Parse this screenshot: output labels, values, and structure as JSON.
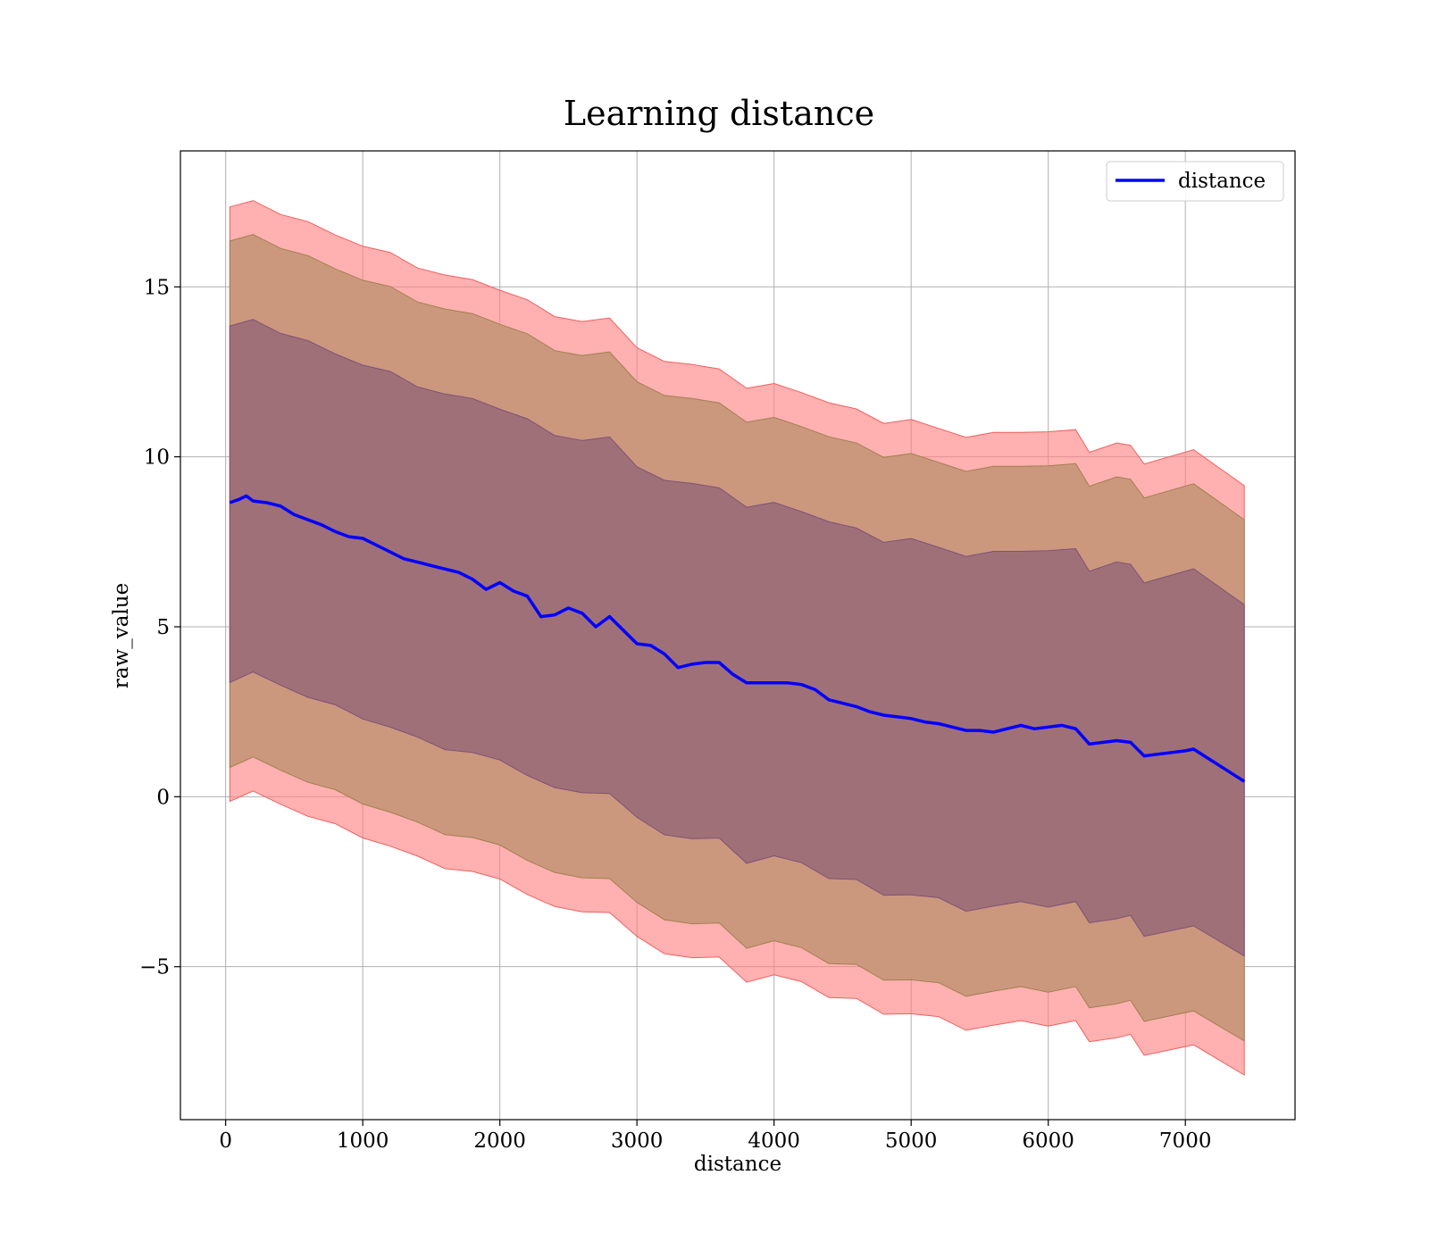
{
  "chart_data": {
    "type": "line",
    "title": "Learning distance",
    "xlabel": "distance",
    "ylabel": "raw_value",
    "xlim": [
      -330,
      7800
    ],
    "ylim": [
      -9.5,
      19.0
    ],
    "xticks": [
      0,
      1000,
      2000,
      3000,
      4000,
      5000,
      6000,
      7000
    ],
    "xtick_labels": [
      "0",
      "1000",
      "2000",
      "3000",
      "4000",
      "5000",
      "6000",
      "7000"
    ],
    "yticks": [
      -5,
      0,
      5,
      10,
      15
    ],
    "ytick_labels": [
      "−5",
      "0",
      "5",
      "10",
      "15"
    ],
    "grid": true,
    "legend": {
      "position": "top-right",
      "entries": [
        {
          "label": "distance",
          "color": "#0000ff"
        }
      ]
    },
    "colors": {
      "line": "#0000ff",
      "band_outer": "#ff8080",
      "band_middle": "#c8977b",
      "band_inner": "#a07078"
    },
    "series": [
      {
        "name": "distance",
        "x": [
          30,
          100,
          150,
          200,
          300,
          400,
          500,
          600,
          700,
          800,
          900,
          1000,
          1100,
          1200,
          1300,
          1400,
          1500,
          1600,
          1700,
          1800,
          1900,
          2000,
          2100,
          2200,
          2300,
          2400,
          2500,
          2600,
          2700,
          2800,
          2900,
          3000,
          3100,
          3200,
          3300,
          3400,
          3500,
          3600,
          3700,
          3800,
          3900,
          4000,
          4100,
          4200,
          4300,
          4400,
          4500,
          4600,
          4700,
          4800,
          4900,
          5000,
          5100,
          5200,
          5300,
          5400,
          5500,
          5600,
          5700,
          5800,
          5900,
          6000,
          6100,
          6200,
          6300,
          6400,
          6500,
          6600,
          6700,
          6800,
          6900,
          7000,
          7060,
          7430
        ],
        "y": [
          8.65,
          8.75,
          8.85,
          8.7,
          8.65,
          8.55,
          8.3,
          8.15,
          8.0,
          7.8,
          7.65,
          7.6,
          7.4,
          7.2,
          7.0,
          6.9,
          6.8,
          6.7,
          6.6,
          6.4,
          6.1,
          6.3,
          6.05,
          5.9,
          5.3,
          5.35,
          5.55,
          5.4,
          5.0,
          5.3,
          4.9,
          4.5,
          4.45,
          4.2,
          3.8,
          3.9,
          3.95,
          3.95,
          3.6,
          3.35,
          3.35,
          3.35,
          3.35,
          3.3,
          3.15,
          2.85,
          2.75,
          2.65,
          2.5,
          2.4,
          2.35,
          2.3,
          2.2,
          2.15,
          2.05,
          1.95,
          1.95,
          1.9,
          2.0,
          2.1,
          2.0,
          2.05,
          2.1,
          2.0,
          1.55,
          1.6,
          1.65,
          1.6,
          1.2,
          1.25,
          1.3,
          1.35,
          1.4,
          0.45
        ]
      }
    ],
    "bands": {
      "x": [
        30,
        200,
        400,
        600,
        800,
        1000,
        1200,
        1400,
        1600,
        1800,
        2000,
        2200,
        2400,
        2600,
        2800,
        3000,
        3200,
        3400,
        3600,
        3800,
        4000,
        4200,
        4400,
        4600,
        4800,
        5000,
        5200,
        5400,
        5600,
        5800,
        6000,
        6200,
        6300,
        6500,
        6600,
        6700,
        7060,
        7430
      ],
      "center": [
        8.65,
        8.75,
        8.55,
        8.15,
        7.8,
        7.6,
        7.2,
        6.9,
        6.7,
        6.4,
        6.3,
        5.9,
        5.35,
        5.4,
        5.3,
        4.5,
        4.2,
        3.9,
        3.95,
        3.35,
        3.35,
        3.3,
        2.85,
        2.65,
        2.4,
        2.3,
        2.15,
        1.95,
        1.9,
        2.1,
        2.05,
        2.0,
        1.55,
        1.65,
        1.6,
        1.2,
        1.4,
        0.45
      ],
      "half_width_inner": 5.2,
      "half_width_middle": 7.7,
      "half_width_outer": 8.7
    }
  }
}
